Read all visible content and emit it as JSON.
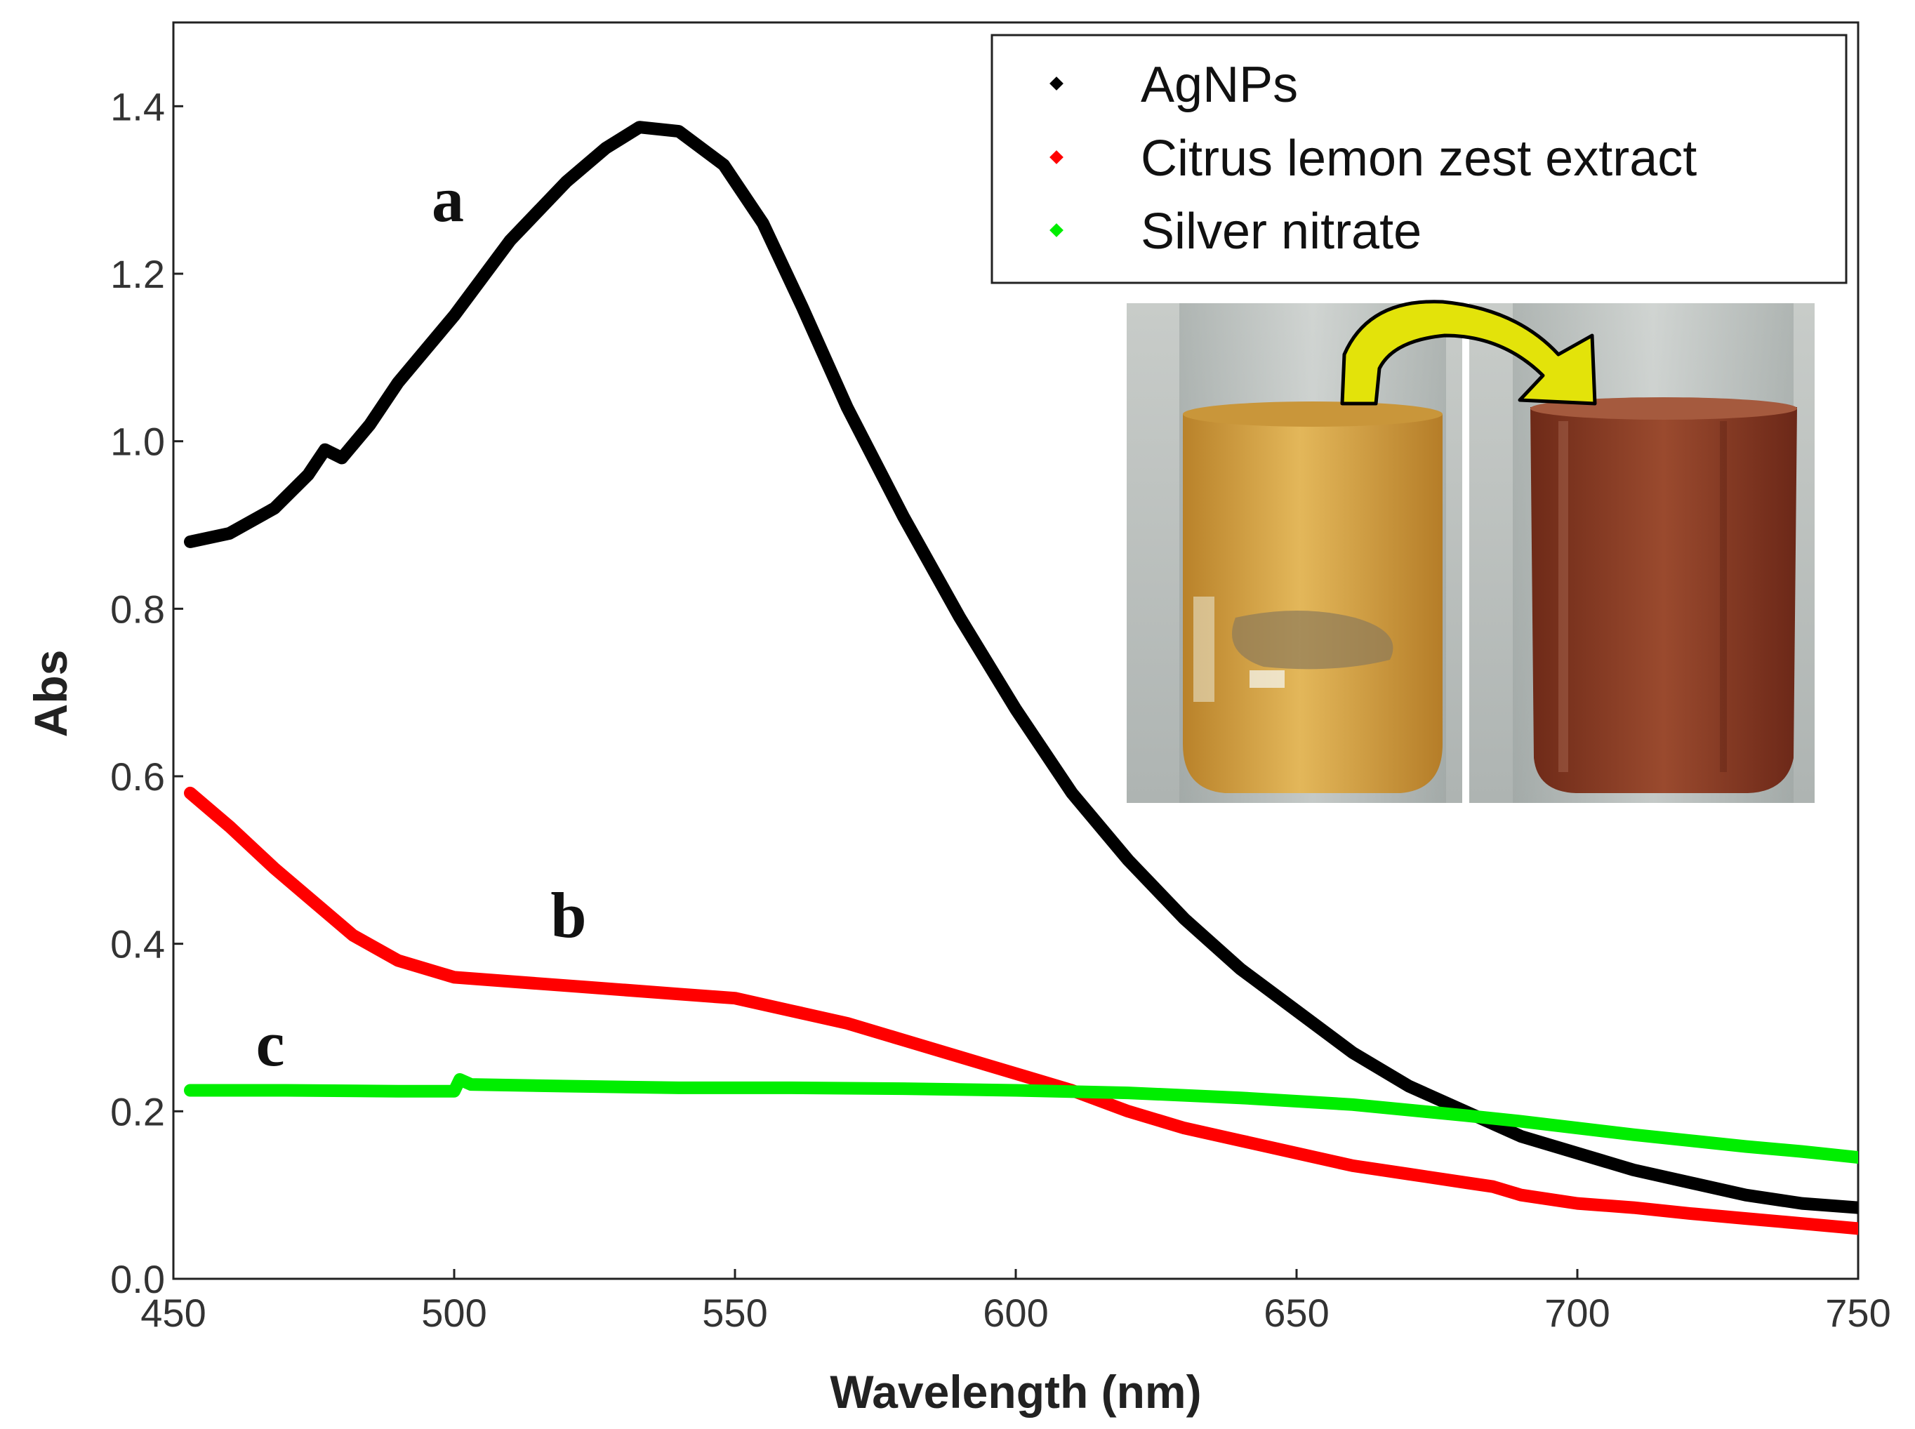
{
  "chart_data": {
    "type": "line",
    "title": "",
    "xlabel": "Wavelength (nm)",
    "ylabel": "Abs",
    "xlim": [
      450,
      750
    ],
    "ylim": [
      0.0,
      1.5
    ],
    "xticks": [
      "450",
      "500",
      "550",
      "600",
      "650",
      "700",
      "750"
    ],
    "yticks": [
      "0.0",
      "0.2",
      "0.4",
      "0.6",
      "0.8",
      "1.0",
      "1.2",
      "1.4"
    ],
    "legend_position": "top-right",
    "series": [
      {
        "name": "AgNPs",
        "curve_label": "a",
        "color": "#000000",
        "points": [
          [
            453,
            0.88
          ],
          [
            460,
            0.89
          ],
          [
            468,
            0.92
          ],
          [
            474,
            0.96
          ],
          [
            477,
            0.99
          ],
          [
            480,
            0.98
          ],
          [
            485,
            1.02
          ],
          [
            490,
            1.07
          ],
          [
            500,
            1.15
          ],
          [
            510,
            1.24
          ],
          [
            520,
            1.31
          ],
          [
            527,
            1.35
          ],
          [
            533,
            1.375
          ],
          [
            540,
            1.37
          ],
          [
            548,
            1.33
          ],
          [
            555,
            1.26
          ],
          [
            562,
            1.16
          ],
          [
            570,
            1.04
          ],
          [
            580,
            0.91
          ],
          [
            590,
            0.79
          ],
          [
            600,
            0.68
          ],
          [
            610,
            0.58
          ],
          [
            620,
            0.5
          ],
          [
            630,
            0.43
          ],
          [
            640,
            0.37
          ],
          [
            650,
            0.32
          ],
          [
            660,
            0.27
          ],
          [
            670,
            0.23
          ],
          [
            680,
            0.2
          ],
          [
            690,
            0.17
          ],
          [
            700,
            0.15
          ],
          [
            710,
            0.13
          ],
          [
            720,
            0.115
          ],
          [
            730,
            0.1
          ],
          [
            740,
            0.09
          ],
          [
            750,
            0.085
          ]
        ]
      },
      {
        "name": "Citrus lemon zest extract",
        "curve_label": "b",
        "color": "#ff0000",
        "points": [
          [
            453,
            0.58
          ],
          [
            460,
            0.54
          ],
          [
            468,
            0.49
          ],
          [
            475,
            0.45
          ],
          [
            482,
            0.41
          ],
          [
            490,
            0.38
          ],
          [
            500,
            0.36
          ],
          [
            510,
            0.355
          ],
          [
            520,
            0.35
          ],
          [
            530,
            0.345
          ],
          [
            540,
            0.34
          ],
          [
            550,
            0.335
          ],
          [
            560,
            0.32
          ],
          [
            570,
            0.305
          ],
          [
            580,
            0.285
          ],
          [
            590,
            0.265
          ],
          [
            600,
            0.245
          ],
          [
            610,
            0.225
          ],
          [
            620,
            0.2
          ],
          [
            630,
            0.18
          ],
          [
            640,
            0.165
          ],
          [
            650,
            0.15
          ],
          [
            660,
            0.135
          ],
          [
            670,
            0.125
          ],
          [
            680,
            0.115
          ],
          [
            685,
            0.11
          ],
          [
            690,
            0.1
          ],
          [
            700,
            0.09
          ],
          [
            710,
            0.085
          ],
          [
            720,
            0.078
          ],
          [
            730,
            0.072
          ],
          [
            740,
            0.066
          ],
          [
            750,
            0.06
          ]
        ]
      },
      {
        "name": "Silver nitrate",
        "curve_label": "c",
        "color": "#00ee00",
        "points": [
          [
            453,
            0.225
          ],
          [
            470,
            0.225
          ],
          [
            490,
            0.224
          ],
          [
            500,
            0.224
          ],
          [
            501,
            0.238
          ],
          [
            503,
            0.232
          ],
          [
            520,
            0.23
          ],
          [
            540,
            0.228
          ],
          [
            560,
            0.228
          ],
          [
            580,
            0.227
          ],
          [
            600,
            0.225
          ],
          [
            620,
            0.222
          ],
          [
            640,
            0.216
          ],
          [
            660,
            0.208
          ],
          [
            680,
            0.195
          ],
          [
            690,
            0.188
          ],
          [
            700,
            0.18
          ],
          [
            710,
            0.172
          ],
          [
            720,
            0.165
          ],
          [
            730,
            0.158
          ],
          [
            740,
            0.152
          ],
          [
            750,
            0.145
          ]
        ]
      }
    ]
  },
  "inset": {
    "photo_before": "lemon zest extract solution (yellow)",
    "photo_after": "AgNPs solution (brown)"
  },
  "colors": {
    "before_liquid": "#d9a640",
    "after_liquid": "#8a3a22",
    "arrow": "#e3e30a"
  }
}
